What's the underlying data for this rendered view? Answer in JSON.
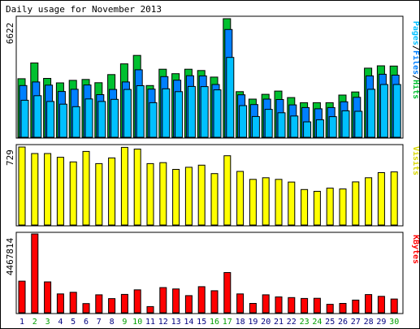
{
  "title": "Daily usage for November 2013",
  "colors": {
    "hits": "#00c030",
    "files": "#0080ff",
    "pages": "#00c0ff",
    "visits": "#ffff00",
    "kbytes": "#ff0000",
    "weekend_day": "#00a000",
    "weekday_day": "#000080"
  },
  "chart_data": [
    {
      "type": "bar",
      "panel": "pages-files-hits",
      "legend_parts": [
        "Pages",
        "Files",
        "Hits"
      ],
      "max_label": "6622",
      "ylim": [
        0,
        6622
      ],
      "categories": [
        "1",
        "2",
        "3",
        "4",
        "5",
        "6",
        "7",
        "8",
        "9",
        "10",
        "11",
        "12",
        "13",
        "14",
        "15",
        "16",
        "17",
        "18",
        "19",
        "20",
        "21",
        "22",
        "23",
        "24",
        "25",
        "26",
        "27",
        "28",
        "29",
        "30"
      ],
      "series": [
        {
          "name": "Hits",
          "values": [
            3270,
            4150,
            3290,
            3040,
            3180,
            3230,
            3050,
            3500,
            4100,
            4570,
            2890,
            3800,
            3550,
            3800,
            3730,
            3360,
            6622,
            2550,
            2130,
            2400,
            2580,
            2220,
            1930,
            1930,
            1930,
            2360,
            2530,
            3860,
            3990,
            3980
          ]
        },
        {
          "name": "Files",
          "values": [
            2890,
            3090,
            2910,
            2560,
            2680,
            2920,
            2380,
            2670,
            3090,
            3770,
            2690,
            3390,
            3190,
            3440,
            3430,
            2950,
            6020,
            2370,
            1830,
            2130,
            2110,
            1810,
            1660,
            1590,
            1660,
            1980,
            2230,
            3430,
            3520,
            3470
          ]
        },
        {
          "name": "Pages",
          "values": [
            2070,
            2320,
            2000,
            1850,
            1710,
            2140,
            2000,
            2120,
            2670,
            2880,
            1930,
            2710,
            2550,
            2840,
            2830,
            2650,
            4460,
            1770,
            1160,
            1560,
            1370,
            1190,
            860,
            980,
            1150,
            1480,
            1450,
            2680,
            2950,
            2950
          ]
        }
      ]
    },
    {
      "type": "bar",
      "panel": "visits",
      "legend": "Visits",
      "max_label": "729",
      "ylim": [
        0,
        729
      ],
      "categories": [
        "1",
        "2",
        "3",
        "4",
        "5",
        "6",
        "7",
        "8",
        "9",
        "10",
        "11",
        "12",
        "13",
        "14",
        "15",
        "16",
        "17",
        "18",
        "19",
        "20",
        "21",
        "22",
        "23",
        "24",
        "25",
        "26",
        "27",
        "28",
        "29",
        "30"
      ],
      "series": [
        {
          "name": "Visits",
          "values": [
            729,
            668,
            668,
            633,
            590,
            688,
            574,
            627,
            726,
            710,
            574,
            583,
            520,
            540,
            560,
            481,
            648,
            501,
            427,
            442,
            427,
            402,
            332,
            315,
            345,
            337,
            403,
            442,
            490,
            497
          ]
        }
      ]
    },
    {
      "type": "bar",
      "panel": "kbytes",
      "legend": "KBytes",
      "max_label": "4467814",
      "ylim": [
        0,
        4467814
      ],
      "categories": [
        "1",
        "2",
        "3",
        "4",
        "5",
        "6",
        "7",
        "8",
        "9",
        "10",
        "11",
        "12",
        "13",
        "14",
        "15",
        "16",
        "17",
        "18",
        "19",
        "20",
        "21",
        "22",
        "23",
        "24",
        "25",
        "26",
        "27",
        "28",
        "29",
        "30"
      ],
      "series": [
        {
          "name": "KBytes",
          "values": [
            1790000,
            4467814,
            1750000,
            1070000,
            1160000,
            520000,
            1020000,
            800000,
            1040000,
            1300000,
            350000,
            1430000,
            1350000,
            970000,
            1480000,
            1250000,
            2280000,
            1070000,
            530000,
            1020000,
            900000,
            860000,
            810000,
            820000,
            480000,
            530000,
            720000,
            1030000,
            930000,
            780000
          ]
        }
      ]
    }
  ],
  "days": [
    "1",
    "2",
    "3",
    "4",
    "5",
    "6",
    "7",
    "8",
    "9",
    "10",
    "11",
    "12",
    "13",
    "14",
    "15",
    "16",
    "17",
    "18",
    "19",
    "20",
    "21",
    "22",
    "23",
    "24",
    "25",
    "26",
    "27",
    "28",
    "29",
    "30"
  ],
  "weekend_days": [
    "2",
    "3",
    "9",
    "10",
    "16",
    "17",
    "23",
    "24",
    "30"
  ]
}
